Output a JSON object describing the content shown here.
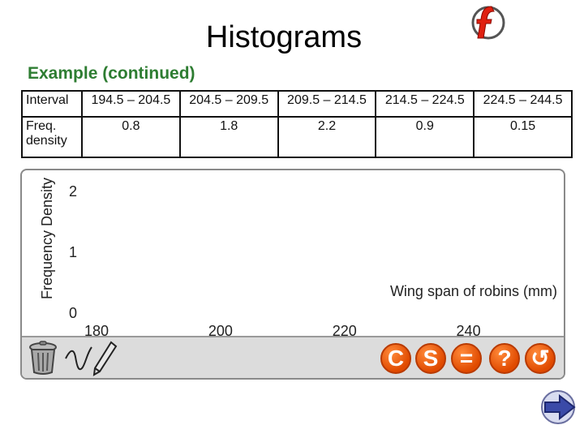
{
  "title": "Histograms",
  "subtitle": "Example (continued)",
  "table": {
    "row1": {
      "label": "Interval",
      "cells": [
        "194.5 – 204.5",
        "204.5 – 209.5",
        "209.5 – 214.5",
        "214.5 – 224.5",
        "224.5 – 244.5"
      ]
    },
    "row2": {
      "label": "Freq. density",
      "cells": [
        "0.8",
        "1.8",
        "2.2",
        "0.9",
        "0.15"
      ]
    }
  },
  "chart_data": {
    "type": "bar",
    "title": "",
    "xlabel": "Wing span of robins (mm)",
    "ylabel": "Frequency Density",
    "xlim": [
      180,
      250
    ],
    "ylim": [
      0,
      2.2
    ],
    "xticks": [
      "180",
      "200",
      "220",
      "240"
    ],
    "yticks": [
      "0",
      "1",
      "2"
    ],
    "categories": [],
    "values": []
  },
  "toolbar": {
    "c_label": "C",
    "s_label": "S",
    "equals_label": "=",
    "help_label": "?",
    "undo_label": "↺"
  },
  "icons": {
    "flash": "flash-logo-icon",
    "trash": "trash-icon",
    "freehand": "freehand-line-icon",
    "pencil": "pencil-icon",
    "next": "next-arrow-icon"
  },
  "colors": {
    "subtitle": "#2e7d32",
    "button": "#e04a00",
    "toolbar": "#dcdcdc"
  }
}
